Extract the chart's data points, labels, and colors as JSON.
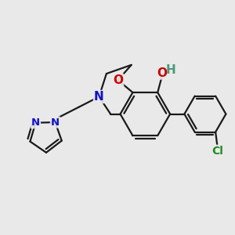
{
  "background_color": "#e9e9e9",
  "bond_color": "#1a1a1a",
  "bond_width": 1.6,
  "dbo": 0.13,
  "atom_colors": {
    "O_ring": "#cc0000",
    "O_OH": "#cc0000",
    "N": "#1111cc",
    "Cl": "#228b22",
    "H": "#4a9a7a",
    "C": "#1a1a1a"
  },
  "font_size": 11,
  "font_size_small": 9.5
}
